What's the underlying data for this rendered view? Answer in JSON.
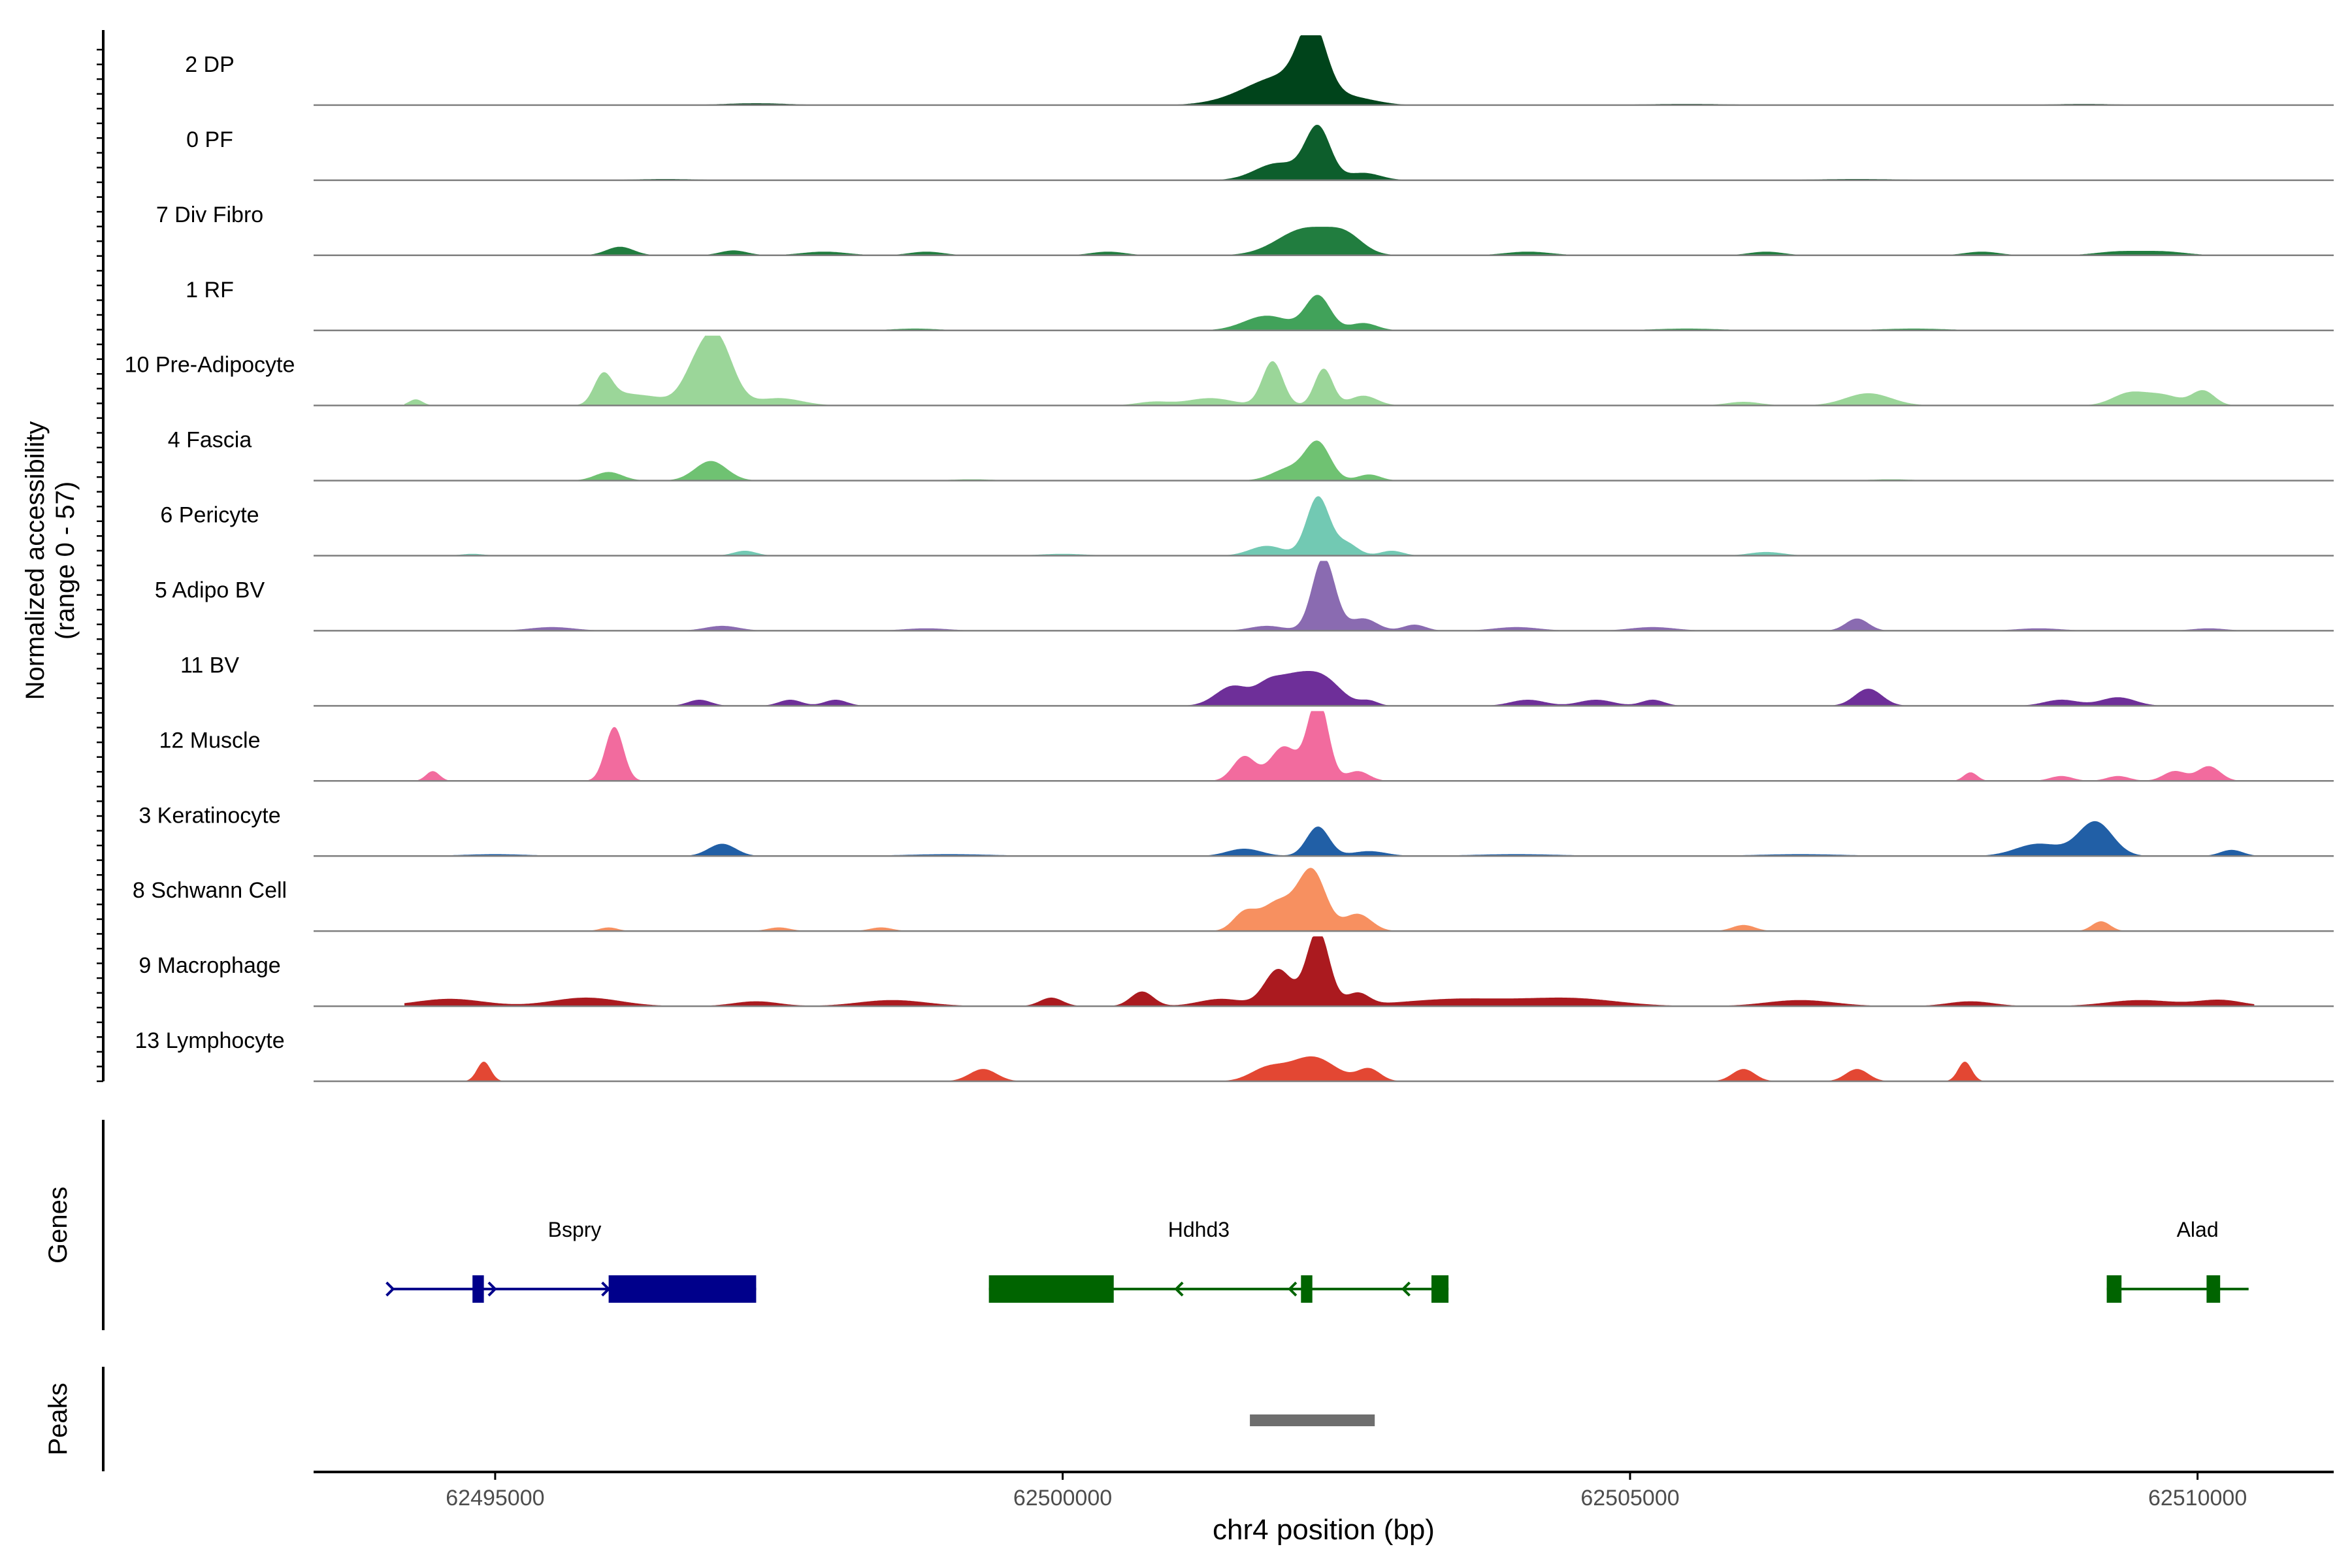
{
  "chart_data": {
    "type": "area",
    "title": "",
    "ylabel": [
      "Normalized accessibility",
      "(range 0 - 57)"
    ],
    "ylim": [
      0,
      57
    ],
    "xlabel": "chr4 position (bp)",
    "xlim": [
      62493400,
      62511200
    ],
    "xticks": [
      62495000,
      62500000,
      62505000,
      62510000
    ],
    "xtick_labels": [
      "62495000",
      "62500000",
      "62505000",
      "62510000"
    ],
    "track_start": 62494200,
    "track_end": 62510500,
    "series": [
      {
        "name": "2 DP",
        "color": "#00441b",
        "peaks": [
          [
            62502200,
            120,
            52
          ],
          [
            62502000,
            300,
            20
          ],
          [
            62501700,
            300,
            6
          ],
          [
            62502600,
            200,
            4
          ],
          [
            62497300,
            300,
            1.5
          ],
          [
            62505500,
            400,
            1
          ],
          [
            62509000,
            300,
            1
          ]
        ]
      },
      {
        "name": "0 PF",
        "color": "#0d5e2c",
        "peaks": [
          [
            62502250,
            110,
            42
          ],
          [
            62501900,
            200,
            14
          ],
          [
            62502650,
            150,
            6
          ],
          [
            62496500,
            300,
            1
          ],
          [
            62507000,
            400,
            1
          ]
        ]
      },
      {
        "name": "7 Div Fibro",
        "color": "#217d3f",
        "peaks": [
          [
            62502150,
            250,
            22
          ],
          [
            62502500,
            150,
            12
          ],
          [
            62496100,
            120,
            7
          ],
          [
            62497100,
            120,
            4
          ],
          [
            62497900,
            200,
            3
          ],
          [
            62498800,
            150,
            3
          ],
          [
            62500400,
            150,
            3
          ],
          [
            62504100,
            200,
            3
          ],
          [
            62506200,
            150,
            3
          ],
          [
            62508100,
            150,
            3
          ],
          [
            62509300,
            200,
            3
          ],
          [
            62509700,
            200,
            3
          ]
        ]
      },
      {
        "name": "1 RF",
        "color": "#41a25a",
        "peaks": [
          [
            62502250,
            110,
            28
          ],
          [
            62501800,
            200,
            12
          ],
          [
            62502650,
            120,
            6
          ],
          [
            62498700,
            200,
            1.5
          ],
          [
            62505500,
            300,
            1.5
          ],
          [
            62507500,
            300,
            1.5
          ]
        ]
      },
      {
        "name": "10 Pre-Adipocyte",
        "color": "#9bd699",
        "peaks": [
          [
            62496950,
            140,
            55
          ],
          [
            62496750,
            120,
            20
          ],
          [
            62495950,
            80,
            24
          ],
          [
            62496300,
            200,
            8
          ],
          [
            62497500,
            200,
            6
          ],
          [
            62501850,
            90,
            36
          ],
          [
            62502300,
            80,
            30
          ],
          [
            62502650,
            120,
            8
          ],
          [
            62501300,
            200,
            6
          ],
          [
            62507100,
            200,
            10
          ],
          [
            62509400,
            150,
            10
          ],
          [
            62509700,
            150,
            8
          ],
          [
            62510050,
            100,
            12
          ],
          [
            62494300,
            60,
            5
          ],
          [
            62496100,
            100,
            4
          ],
          [
            62500800,
            150,
            3
          ],
          [
            62506000,
            150,
            3
          ]
        ]
      },
      {
        "name": "4 Fascia",
        "color": "#6fc272",
        "peaks": [
          [
            62502250,
            110,
            30
          ],
          [
            62496900,
            140,
            16
          ],
          [
            62496000,
            120,
            7
          ],
          [
            62502000,
            150,
            10
          ],
          [
            62502700,
            100,
            5
          ],
          [
            62499200,
            200,
            1
          ],
          [
            62507300,
            200,
            1
          ]
        ]
      },
      {
        "name": "6 Pericyte",
        "color": "#72c9b3",
        "peaks": [
          [
            62502250,
            100,
            48
          ],
          [
            62502500,
            100,
            10
          ],
          [
            62501800,
            150,
            8
          ],
          [
            62502900,
            100,
            4
          ],
          [
            62497200,
            100,
            4
          ],
          [
            62506200,
            150,
            3
          ],
          [
            62494800,
            100,
            1.5
          ],
          [
            62500000,
            200,
            1.5
          ]
        ]
      },
      {
        "name": "5 Adipo BV",
        "color": "#8a6bb1",
        "peaks": [
          [
            62502300,
            100,
            60
          ],
          [
            62502650,
            120,
            10
          ],
          [
            62501800,
            150,
            4
          ],
          [
            62503100,
            100,
            5
          ],
          [
            62507000,
            100,
            10
          ],
          [
            62497000,
            150,
            4
          ],
          [
            62495500,
            200,
            3
          ],
          [
            62498800,
            200,
            2
          ],
          [
            62504000,
            200,
            3
          ],
          [
            62505200,
            200,
            3
          ],
          [
            62508600,
            200,
            2
          ],
          [
            62510100,
            150,
            2
          ]
        ]
      },
      {
        "name": "11 BV",
        "color": "#6e2f99",
        "peaks": [
          [
            62502000,
            180,
            22
          ],
          [
            62502300,
            160,
            20
          ],
          [
            62501500,
            150,
            16
          ],
          [
            62501800,
            100,
            8
          ],
          [
            62502700,
            80,
            4
          ],
          [
            62507100,
            120,
            14
          ],
          [
            62496800,
            100,
            5
          ],
          [
            62497600,
            100,
            5
          ],
          [
            62498000,
            100,
            5
          ],
          [
            62504100,
            150,
            5
          ],
          [
            62504700,
            150,
            5
          ],
          [
            62505200,
            100,
            5
          ],
          [
            62508800,
            150,
            5
          ],
          [
            62509300,
            150,
            7
          ]
        ]
      },
      {
        "name": "12 Muscle",
        "color": "#f26b9e",
        "peaks": [
          [
            62502250,
            90,
            68
          ],
          [
            62501950,
            120,
            28
          ],
          [
            62501600,
            100,
            20
          ],
          [
            62502600,
            100,
            8
          ],
          [
            62496050,
            80,
            44
          ],
          [
            62494450,
            60,
            8
          ],
          [
            62508000,
            60,
            7
          ],
          [
            62510100,
            100,
            12
          ],
          [
            62509800,
            100,
            8
          ],
          [
            62508800,
            100,
            4
          ],
          [
            62509300,
            100,
            4
          ]
        ]
      },
      {
        "name": "3 Keratinocyte",
        "color": "#215fa6",
        "peaks": [
          [
            62502250,
            100,
            24
          ],
          [
            62509100,
            150,
            28
          ],
          [
            62508600,
            200,
            10
          ],
          [
            62497000,
            120,
            10
          ],
          [
            62501600,
            150,
            6
          ],
          [
            62502700,
            150,
            4
          ],
          [
            62510300,
            100,
            5
          ],
          [
            62495000,
            300,
            1.5
          ],
          [
            62499000,
            400,
            1.5
          ],
          [
            62504000,
            400,
            1.5
          ],
          [
            62506500,
            400,
            1.5
          ]
        ]
      },
      {
        "name": "8 Schwann Cell",
        "color": "#f79060",
        "peaks": [
          [
            62502200,
            120,
            48
          ],
          [
            62501900,
            150,
            24
          ],
          [
            62502600,
            120,
            14
          ],
          [
            62501600,
            100,
            14
          ],
          [
            62506000,
            100,
            5
          ],
          [
            62509150,
            80,
            8
          ],
          [
            62496000,
            80,
            3
          ],
          [
            62497500,
            100,
            3
          ],
          [
            62498400,
            100,
            3
          ]
        ]
      },
      {
        "name": "9 Macrophage",
        "color": "#ab1a1f",
        "peaks": [
          [
            62502250,
            100,
            62
          ],
          [
            62501900,
            120,
            30
          ],
          [
            62502600,
            100,
            10
          ],
          [
            62500700,
            100,
            12
          ],
          [
            62499900,
            100,
            7
          ],
          [
            62495800,
            300,
            7
          ],
          [
            62494600,
            300,
            6
          ],
          [
            62503500,
            500,
            6
          ],
          [
            62504500,
            400,
            6
          ],
          [
            62498500,
            300,
            5
          ],
          [
            62506500,
            300,
            5
          ],
          [
            62509500,
            300,
            5
          ],
          [
            62510200,
            200,
            5
          ],
          [
            62508000,
            200,
            4
          ],
          [
            62501400,
            200,
            6
          ],
          [
            62497300,
            200,
            4
          ]
        ]
      },
      {
        "name": "13 Lymphocyte",
        "color": "#e34733",
        "peaks": [
          [
            62494900,
            60,
            16
          ],
          [
            62499300,
            120,
            10
          ],
          [
            62502200,
            200,
            20
          ],
          [
            62501800,
            150,
            10
          ],
          [
            62502700,
            100,
            10
          ],
          [
            62506000,
            100,
            10
          ],
          [
            62507000,
            100,
            10
          ],
          [
            62507950,
            60,
            16
          ]
        ]
      }
    ],
    "genes": [
      {
        "name": "Bspry",
        "strand": "+",
        "color": "#00008b",
        "start": 62494100,
        "end": 62497300,
        "exons": [
          [
            62494800,
            62494900
          ],
          [
            62496000,
            62497300
          ]
        ],
        "arrows": [
          62494100,
          62495000,
          62496000
        ],
        "label_x": 62495700
      },
      {
        "name": "Hdhd3",
        "strand": "-",
        "color": "#006400",
        "start": 62499350,
        "end": 62503400,
        "exons": [
          [
            62499350,
            62500450
          ],
          [
            62502100,
            62502200
          ],
          [
            62503250,
            62503400
          ]
        ],
        "arrows": [
          62501000,
          62502000,
          62503000
        ],
        "label_x": 62501200
      },
      {
        "name": "Alad",
        "strand": "",
        "color": "#006400",
        "start": 62509200,
        "end": 62510450,
        "exons": [
          [
            62509200,
            62509330
          ],
          [
            62510080,
            62510200
          ]
        ],
        "arrows": [],
        "label_x": 62510000
      }
    ],
    "peaks_track": {
      "label": "Peaks",
      "color": "#6e6e6e",
      "intervals": [
        [
          62501650,
          62502750
        ]
      ]
    },
    "genes_track_label": "Genes"
  }
}
